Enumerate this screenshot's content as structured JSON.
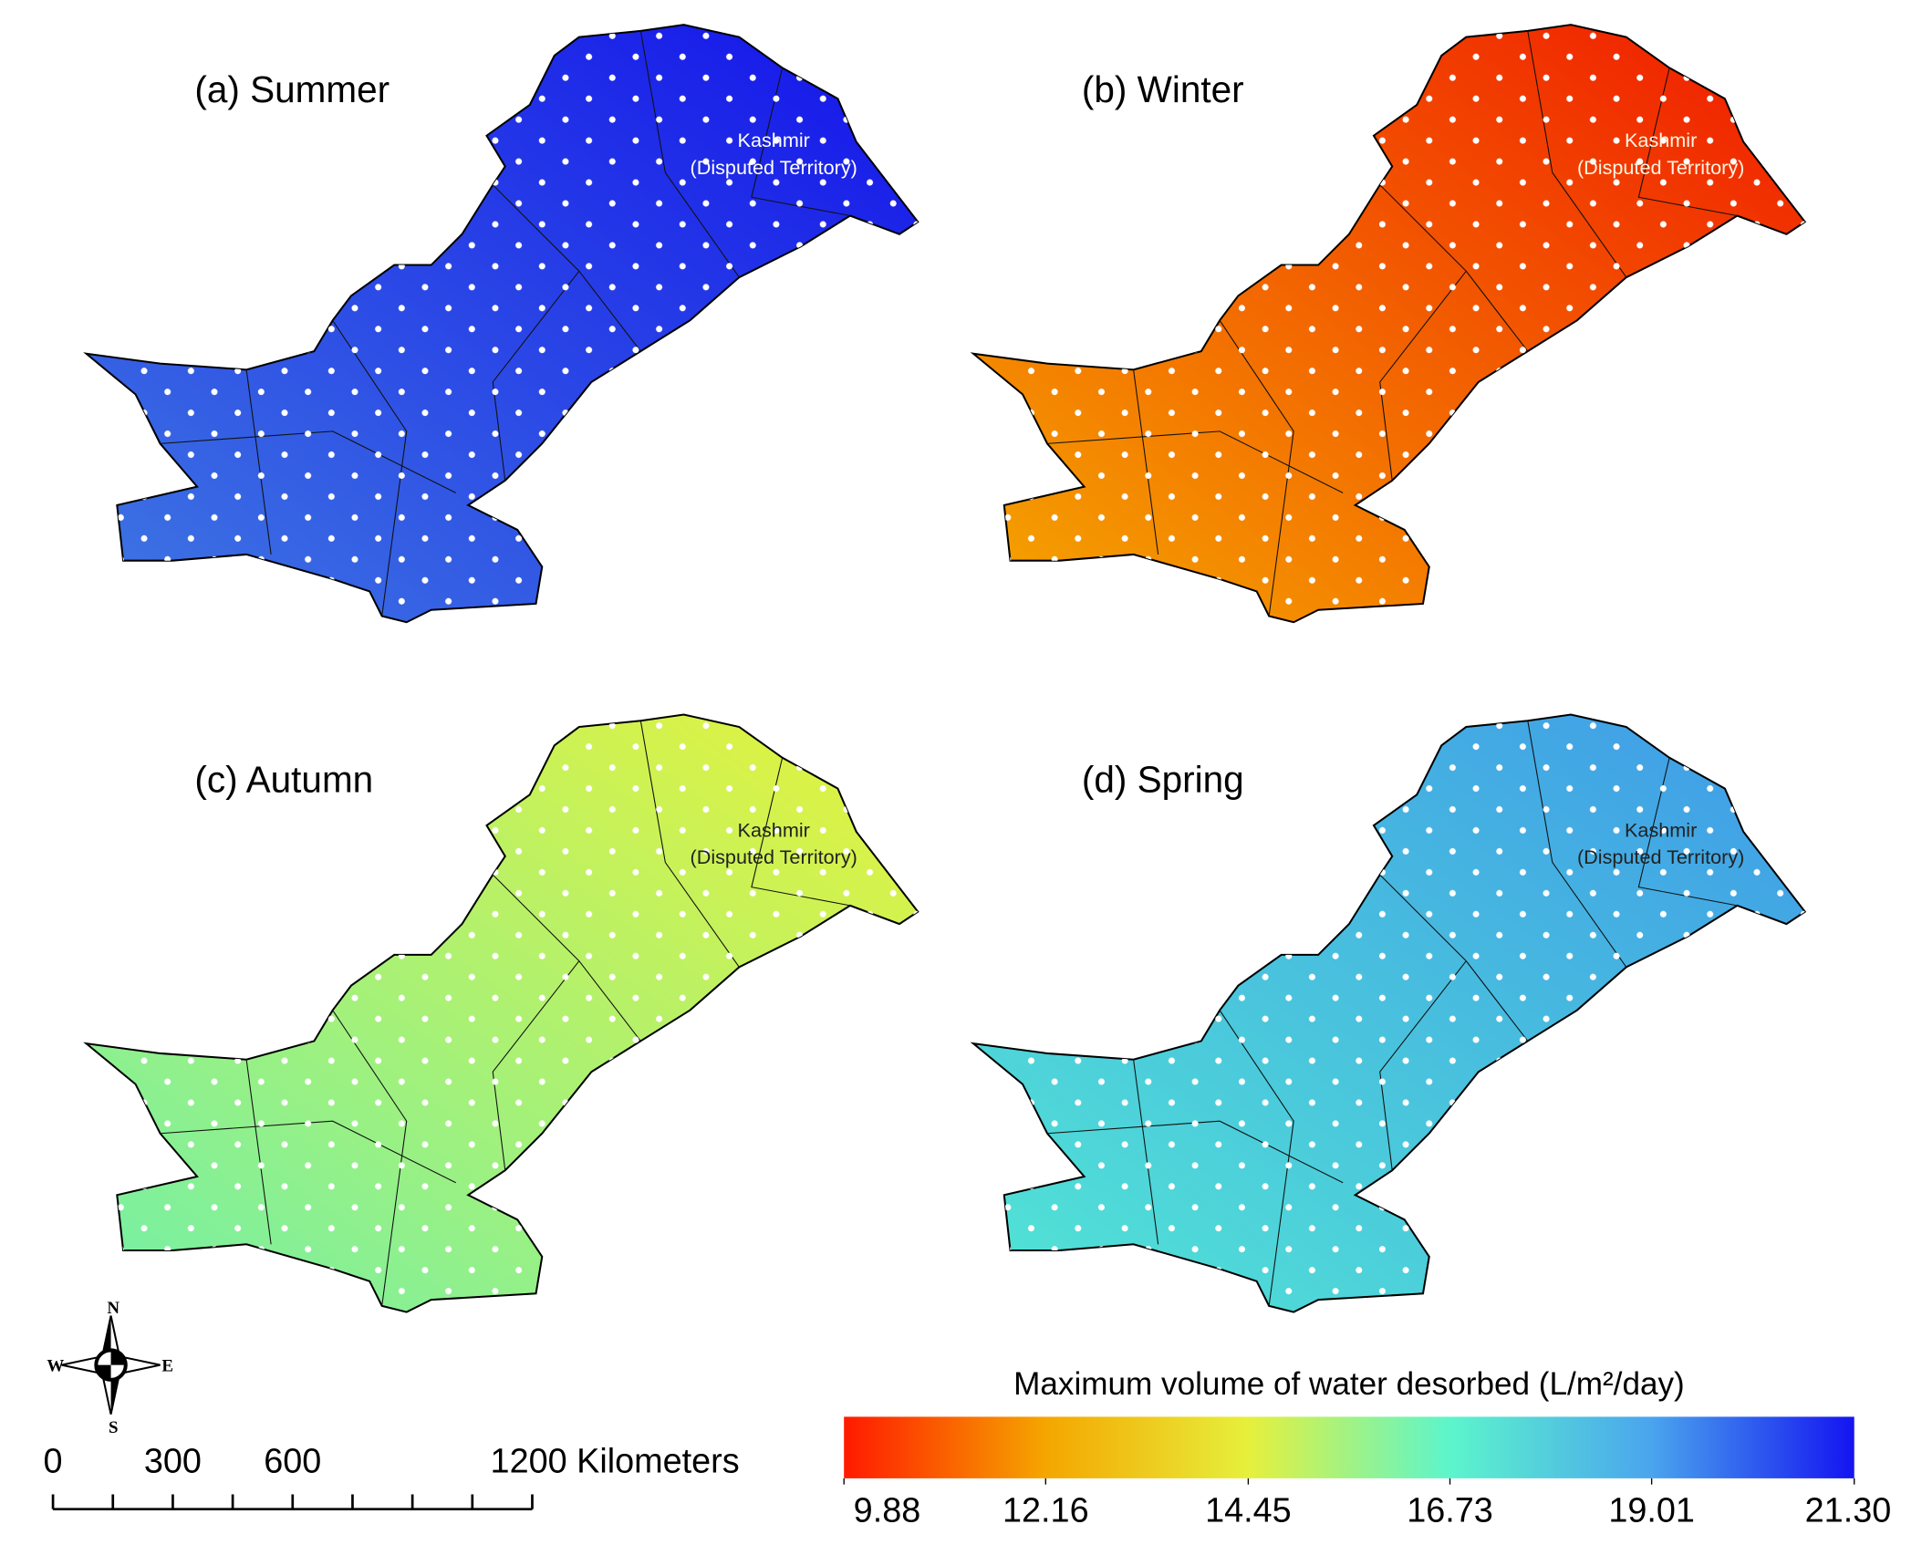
{
  "panels": [
    {
      "label": "(a) Summer",
      "colors": [
        "#1412ea",
        "#3f78e2"
      ],
      "label_color": "#ffffff"
    },
    {
      "label": "(b) Winter",
      "colors": [
        "#f01800",
        "#f5a800"
      ],
      "label_color": "#fff4e0"
    },
    {
      "label": "(c) Autumn",
      "colors": [
        "#e8f23a",
        "#72f0a8"
      ],
      "label_color": "#222222"
    },
    {
      "label": "(d) Spring",
      "colors": [
        "#3f9ae8",
        "#52e6d4"
      ],
      "label_color": "#222222"
    }
  ],
  "kashmir_label": [
    "Kashmir",
    "(Disputed Territory)"
  ],
  "compass": {
    "north": "N",
    "south": "S",
    "east": "E",
    "west": "W"
  },
  "scale_bar": {
    "range": [
      0,
      1200
    ],
    "ticks": [
      0,
      300,
      600,
      {
        "value": 1200,
        "label": "1200 Kilometers"
      }
    ],
    "minor_ticks": [
      150,
      450,
      750,
      900,
      1050
    ]
  },
  "legend": {
    "title": "Maximum volume of water desorbed (L/m²/day)",
    "range": [
      9.88,
      21.3
    ],
    "ticks": [
      9.88,
      12.16,
      14.45,
      16.73,
      19.01,
      {
        "value": 21.3,
        "label": "21.30"
      }
    ],
    "colors": [
      "#ff1a00",
      "#f5a600",
      "#e6f03c",
      "#5cf5cc",
      "#4aa4ee",
      "#1414f0"
    ]
  }
}
